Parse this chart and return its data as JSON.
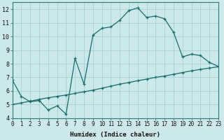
{
  "title": "",
  "xlabel": "Humidex (Indice chaleur)",
  "ylabel": "",
  "bg_color": "#cce8ea",
  "grid_color": "#aad4d8",
  "line_color": "#1a6b6b",
  "x_line1": [
    0,
    1,
    2,
    3,
    4,
    5,
    6,
    7,
    8,
    9,
    10,
    11,
    12,
    13,
    14,
    15,
    16,
    17,
    18,
    19,
    20,
    21,
    22,
    23
  ],
  "y_line1": [
    6.8,
    5.6,
    5.2,
    5.3,
    4.6,
    4.9,
    4.3,
    8.4,
    6.5,
    10.1,
    10.6,
    10.7,
    11.2,
    11.9,
    12.1,
    11.4,
    11.5,
    11.3,
    10.3,
    8.5,
    8.7,
    8.6,
    8.1,
    7.8
  ],
  "x_line2": [
    0,
    1,
    2,
    3,
    4,
    5,
    6,
    7,
    8,
    9,
    10,
    11,
    12,
    13,
    14,
    15,
    16,
    17,
    18,
    19,
    20,
    21,
    22,
    23
  ],
  "y_line2": [
    5.0,
    5.12,
    5.25,
    5.38,
    5.5,
    5.6,
    5.7,
    5.82,
    5.94,
    6.06,
    6.2,
    6.35,
    6.5,
    6.62,
    6.75,
    6.87,
    7.0,
    7.1,
    7.22,
    7.35,
    7.48,
    7.58,
    7.68,
    7.78
  ],
  "xlim": [
    0,
    23
  ],
  "ylim": [
    4,
    12.5
  ],
  "yticks": [
    4,
    5,
    6,
    7,
    8,
    9,
    10,
    11,
    12
  ],
  "xticks": [
    0,
    1,
    2,
    3,
    4,
    5,
    6,
    7,
    8,
    9,
    10,
    11,
    12,
    13,
    14,
    15,
    16,
    17,
    18,
    19,
    20,
    21,
    22,
    23
  ],
  "tick_fontsize": 5.5,
  "label_fontsize": 6.5
}
